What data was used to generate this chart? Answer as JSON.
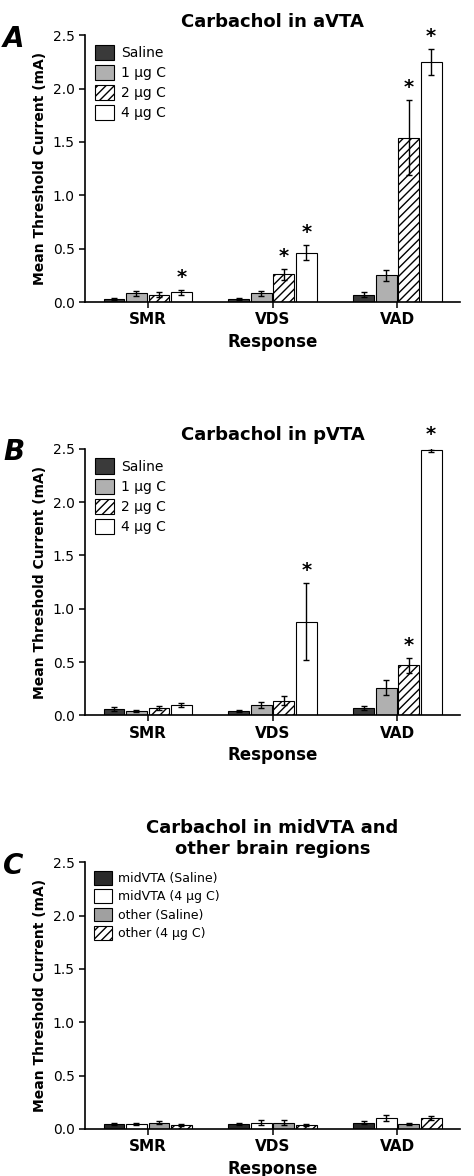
{
  "panel_A": {
    "title": "Carbachol in aVTA",
    "groups": [
      "SMR",
      "VDS",
      "VAD"
    ],
    "series": [
      "Saline",
      "1 μg C",
      "2 μg C",
      "4 μg C"
    ],
    "values": [
      [
        0.03,
        0.08,
        0.07,
        0.09
      ],
      [
        0.03,
        0.08,
        0.26,
        0.46
      ],
      [
        0.07,
        0.25,
        1.54,
        2.25
      ]
    ],
    "errors": [
      [
        0.01,
        0.02,
        0.02,
        0.02
      ],
      [
        0.01,
        0.02,
        0.05,
        0.07
      ],
      [
        0.02,
        0.05,
        0.35,
        0.12
      ]
    ],
    "sig_stars": [
      [
        false,
        false,
        false,
        true
      ],
      [
        false,
        false,
        true,
        true
      ],
      [
        false,
        false,
        true,
        true
      ]
    ],
    "ylim": [
      0,
      2.5
    ],
    "yticks": [
      0.0,
      0.5,
      1.0,
      1.5,
      2.0,
      2.5
    ]
  },
  "panel_B": {
    "title": "Carbachol in pVTA",
    "groups": [
      "SMR",
      "VDS",
      "VAD"
    ],
    "series": [
      "Saline",
      "1 μg C",
      "2 μg C",
      "4 μg C"
    ],
    "values": [
      [
        0.06,
        0.04,
        0.07,
        0.1
      ],
      [
        0.04,
        0.1,
        0.14,
        0.88
      ],
      [
        0.07,
        0.26,
        0.47,
        2.49
      ]
    ],
    "errors": [
      [
        0.02,
        0.01,
        0.02,
        0.02
      ],
      [
        0.01,
        0.03,
        0.04,
        0.36
      ],
      [
        0.02,
        0.07,
        0.07,
        0.02
      ]
    ],
    "sig_stars": [
      [
        false,
        false,
        false,
        false
      ],
      [
        false,
        false,
        false,
        true
      ],
      [
        false,
        false,
        true,
        true
      ]
    ],
    "ylim": [
      0,
      2.5
    ],
    "yticks": [
      0.0,
      0.5,
      1.0,
      1.5,
      2.0,
      2.5
    ]
  },
  "panel_C": {
    "title": "Carbachol in midVTA and\nother brain regions",
    "groups": [
      "SMR",
      "VDS",
      "VAD"
    ],
    "series": [
      "midVTA (Saline)",
      "midVTA (4 μg C)",
      "other (Saline)",
      "other (4 μg C)"
    ],
    "values": [
      [
        0.05,
        0.05,
        0.06,
        0.04
      ],
      [
        0.05,
        0.06,
        0.06,
        0.04
      ],
      [
        0.06,
        0.1,
        0.05,
        0.1
      ]
    ],
    "errors": [
      [
        0.01,
        0.01,
        0.01,
        0.01
      ],
      [
        0.01,
        0.02,
        0.02,
        0.01
      ],
      [
        0.01,
        0.03,
        0.01,
        0.02
      ]
    ],
    "sig_stars": [
      [
        false,
        false,
        false,
        false
      ],
      [
        false,
        false,
        false,
        false
      ],
      [
        false,
        false,
        false,
        false
      ]
    ],
    "ylim": [
      0,
      2.5
    ],
    "yticks": [
      0.0,
      0.5,
      1.0,
      1.5,
      2.0,
      2.5
    ]
  },
  "bar_colors_AB": [
    "#3a3a3a",
    "#b0b0b0",
    "#ffffff",
    "#ffffff"
  ],
  "bar_hatches_AB": [
    null,
    null,
    "////",
    null
  ],
  "bar_colors_C": [
    "#2a2a2a",
    "#ffffff",
    "#a0a0a0",
    "#ffffff"
  ],
  "bar_hatches_C": [
    null,
    null,
    null,
    "////"
  ],
  "edgecolor": "#000000",
  "ylabel": "Mean Threshold Current (mA)",
  "xlabel": "Response",
  "panel_labels": [
    "A",
    "B",
    "C"
  ],
  "legend_labels_AB": [
    "Saline",
    "1 μg C",
    "2 μg C",
    "4 μg C"
  ],
  "legend_labels_C": [
    "midVTA (Saline)",
    "midVTA (4 μg C)",
    "other (Saline)",
    "other (4 μg C)"
  ]
}
